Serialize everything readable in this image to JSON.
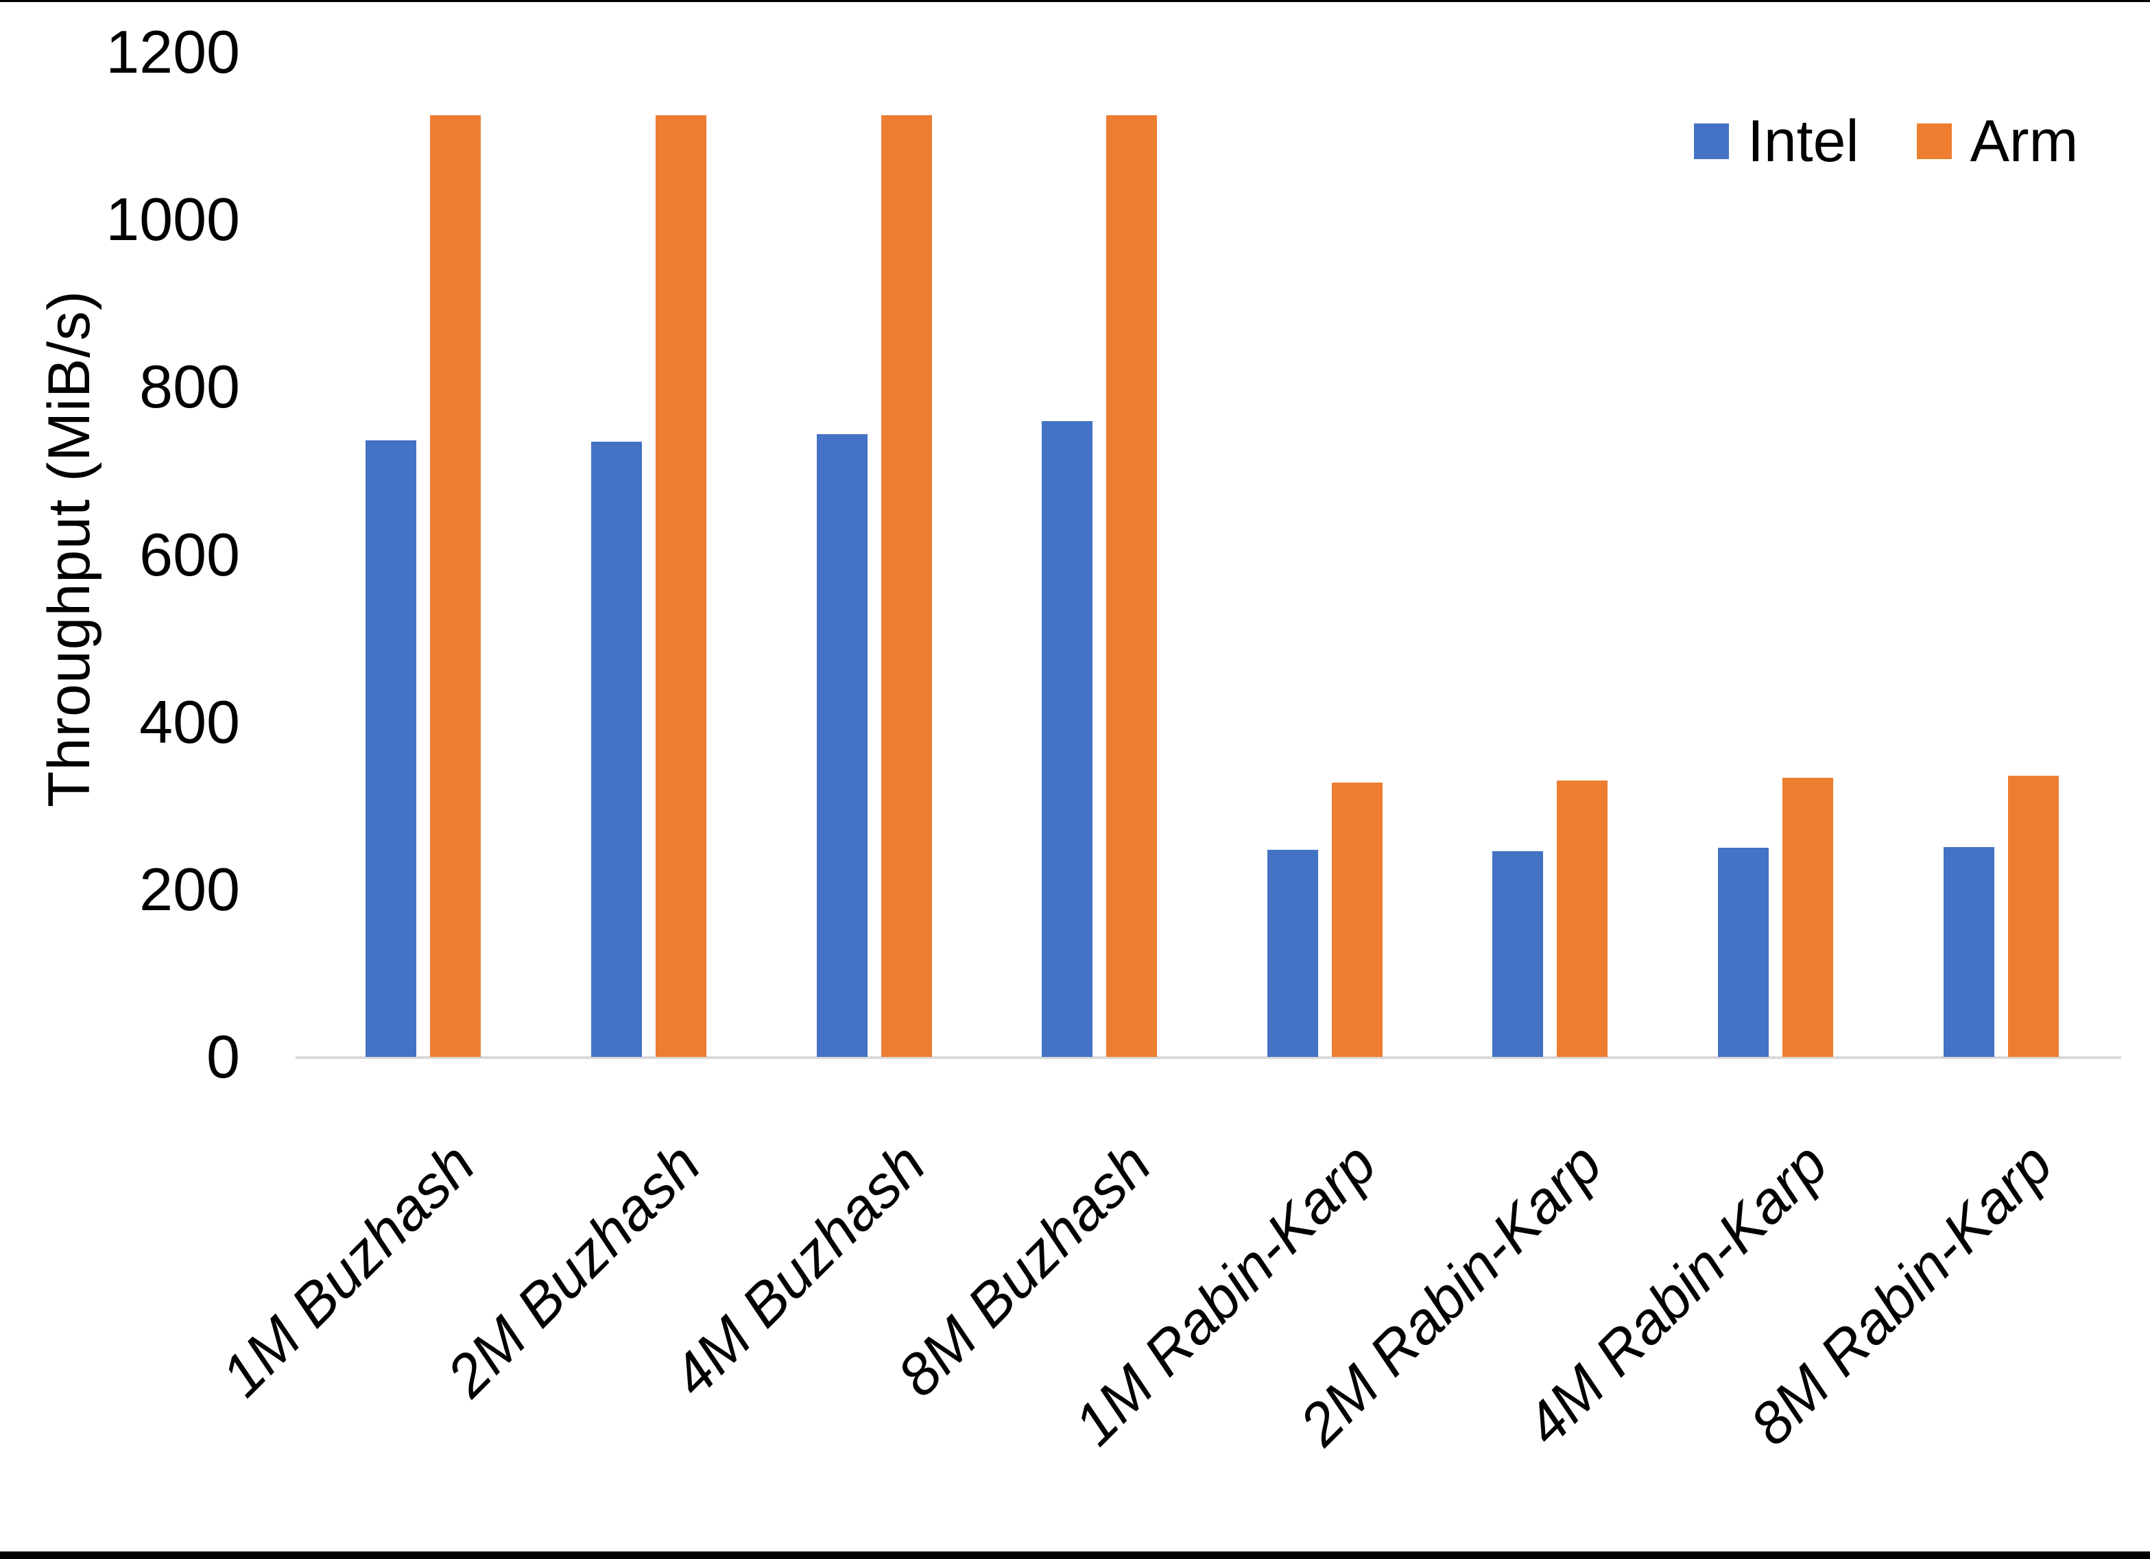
{
  "chart_data": {
    "type": "bar",
    "title": "",
    "xlabel": "",
    "ylabel": "Throughput (MiB/s)",
    "categories": [
      "1M Buzhash",
      "2M Buzhash",
      "4M Buzhash",
      "8M Buzhash",
      "1M Rabin-Karp",
      "2M Rabin-Karp",
      "4M Rabin-Karp",
      "8M Rabin-Karp"
    ],
    "series": [
      {
        "name": "Intel",
        "color": "#4472C4",
        "values": [
          736,
          735,
          744,
          759,
          247,
          246,
          250,
          251
        ]
      },
      {
        "name": "Arm",
        "color": "#ED7D31",
        "values": [
          1125,
          1125,
          1125,
          1125,
          328,
          330,
          333,
          336
        ]
      }
    ],
    "ylim": [
      0,
      1200
    ],
    "yticks": [
      0,
      200,
      400,
      600,
      800,
      1000,
      1200
    ],
    "grid": false,
    "legend_position": "top-right",
    "axis_line_color": "#D9D9D9",
    "text_color": "#000000",
    "background_color": "#ffffff"
  }
}
